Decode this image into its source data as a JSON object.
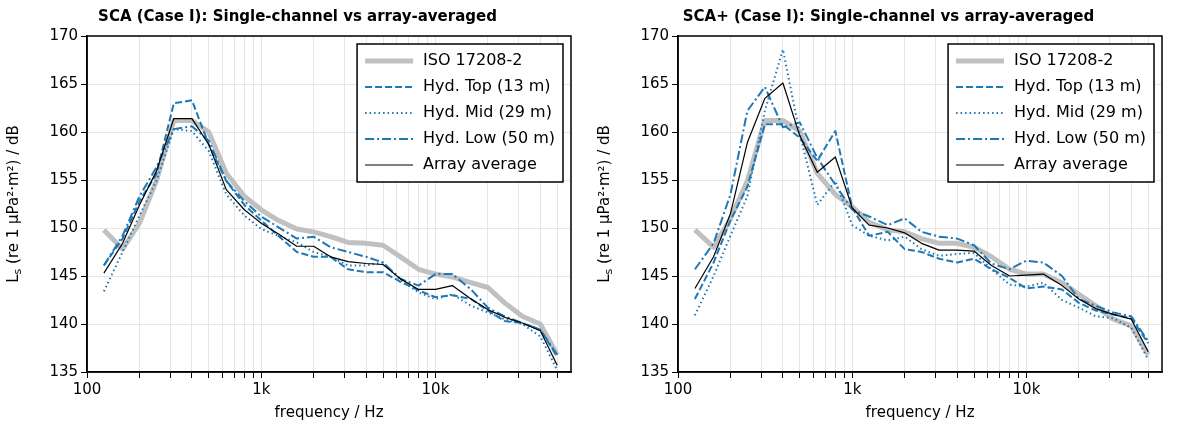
{
  "chart_data": [
    {
      "type": "line",
      "title": "SCA (Case I): Single-channel vs array-averaged",
      "xlabel": "frequency / Hz",
      "ylabel": "L$_{s}$ (re 1 μPa²·m²) / dB",
      "log": "x",
      "grid": true,
      "legend": "top right",
      "marker": "none",
      "x": [
        125,
        160,
        200,
        250,
        315,
        400,
        500,
        630,
        800,
        1000,
        1250,
        1600,
        2000,
        2500,
        3150,
        4000,
        5000,
        6300,
        8000,
        10000,
        12500,
        16000,
        20000,
        25000,
        31500,
        40000,
        50000
      ],
      "xlim": [
        100,
        60000
      ],
      "ylim": [
        135,
        170
      ],
      "yticks": [
        135,
        140,
        145,
        150,
        155,
        160,
        165,
        170
      ],
      "xticks": [
        {
          "value": 100,
          "label": "100"
        },
        {
          "value": 200,
          "label": null
        },
        {
          "value": 300,
          "label": null
        },
        {
          "value": 400,
          "label": null
        },
        {
          "value": 500,
          "label": null
        },
        {
          "value": 600,
          "label": null
        },
        {
          "value": 700,
          "label": null
        },
        {
          "value": 800,
          "label": null
        },
        {
          "value": 900,
          "label": null
        },
        {
          "value": 1000,
          "label": "1k"
        },
        {
          "value": 2000,
          "label": null
        },
        {
          "value": 3000,
          "label": null
        },
        {
          "value": 4000,
          "label": null
        },
        {
          "value": 5000,
          "label": null
        },
        {
          "value": 6000,
          "label": null
        },
        {
          "value": 7000,
          "label": null
        },
        {
          "value": 8000,
          "label": null
        },
        {
          "value": 9000,
          "label": null
        },
        {
          "value": 10000,
          "label": "10k"
        },
        {
          "value": 20000,
          "label": null
        },
        {
          "value": 30000,
          "label": null
        },
        {
          "value": 40000,
          "label": null
        },
        {
          "value": 50000,
          "label": null
        }
      ],
      "series": [
        {
          "name": "ISO 17208-2",
          "color": "#c0c0c0",
          "line_style": "solid",
          "values": [
            149.8,
            147.8,
            150.5,
            154.9,
            161.2,
            161.2,
            160.0,
            155.7,
            153.3,
            151.9,
            150.8,
            149.9,
            149.6,
            149.1,
            148.5,
            148.4,
            148.2,
            147.0,
            145.7,
            145.2,
            144.9,
            144.3,
            143.8,
            142.2,
            140.8,
            140.0,
            136.8
          ]
        },
        {
          "name": "Hyd. Top (13 m)",
          "color": "#1f77b4",
          "line_style": "dashed",
          "values": [
            146.1,
            148.9,
            152.8,
            155.6,
            163.0,
            163.3,
            158.7,
            154.9,
            152.4,
            150.8,
            149.2,
            147.5,
            147.0,
            147.0,
            145.7,
            145.4,
            145.4,
            144.4,
            143.5,
            142.8,
            143.0,
            142.6,
            141.4,
            140.3,
            140.1,
            139.4,
            136.6
          ]
        },
        {
          "name": "Hyd. Mid (29 m)",
          "color": "#1f77b4",
          "line_style": "dotted",
          "values": [
            143.4,
            147.5,
            151.3,
            154.9,
            160.3,
            160.1,
            158.0,
            153.5,
            151.3,
            149.9,
            149.2,
            148.5,
            147.5,
            147.0,
            146.1,
            146.1,
            146.4,
            144.6,
            143.3,
            142.6,
            143.1,
            141.9,
            141.2,
            140.5,
            140.0,
            138.7,
            135.2
          ]
        },
        {
          "name": "Hyd. Low (50 m)",
          "color": "#1f77b4",
          "line_style": "dashdot",
          "values": [
            146.1,
            149.2,
            153.3,
            156.3,
            160.3,
            160.6,
            159.1,
            154.9,
            152.8,
            151.2,
            150.1,
            148.9,
            149.1,
            148.0,
            147.5,
            147.0,
            146.4,
            144.7,
            144.0,
            145.2,
            145.2,
            143.6,
            141.7,
            140.8,
            140.1,
            139.4,
            136.8
          ]
        },
        {
          "name": "Array average",
          "color": "#000000",
          "line_style": "solid",
          "values": [
            145.3,
            148.4,
            152.4,
            155.9,
            161.4,
            161.4,
            158.7,
            154.0,
            151.9,
            150.5,
            149.4,
            148.1,
            148.1,
            147.0,
            146.5,
            146.3,
            146.2,
            144.7,
            143.6,
            143.6,
            144.0,
            142.6,
            141.5,
            140.7,
            140.1,
            139.3,
            135.7
          ]
        }
      ]
    },
    {
      "type": "line",
      "title": "SCA+ (Case I): Single-channel vs array-averaged",
      "xlabel": "frequency / Hz",
      "ylabel": "L$_{s}$ (re 1 μPa²·m²) / dB",
      "log": "x",
      "grid": true,
      "legend": "top right",
      "marker": "none",
      "x": [
        125,
        160,
        200,
        250,
        315,
        400,
        500,
        630,
        800,
        1000,
        1250,
        1600,
        2000,
        2500,
        3150,
        4000,
        5000,
        6300,
        8000,
        10000,
        12500,
        16000,
        20000,
        25000,
        31500,
        40000,
        50000
      ],
      "xlim": [
        100,
        60000
      ],
      "ylim": [
        135,
        170
      ],
      "yticks": [
        135,
        140,
        145,
        150,
        155,
        160,
        165,
        170
      ],
      "xticks": [
        {
          "value": 100,
          "label": "100"
        },
        {
          "value": 200,
          "label": null
        },
        {
          "value": 300,
          "label": null
        },
        {
          "value": 400,
          "label": null
        },
        {
          "value": 500,
          "label": null
        },
        {
          "value": 600,
          "label": null
        },
        {
          "value": 700,
          "label": null
        },
        {
          "value": 800,
          "label": null
        },
        {
          "value": 900,
          "label": null
        },
        {
          "value": 1000,
          "label": "1k"
        },
        {
          "value": 2000,
          "label": null
        },
        {
          "value": 3000,
          "label": null
        },
        {
          "value": 4000,
          "label": null
        },
        {
          "value": 5000,
          "label": null
        },
        {
          "value": 6000,
          "label": null
        },
        {
          "value": 7000,
          "label": null
        },
        {
          "value": 8000,
          "label": null
        },
        {
          "value": 9000,
          "label": null
        },
        {
          "value": 10000,
          "label": "10k"
        },
        {
          "value": 20000,
          "label": null
        },
        {
          "value": 30000,
          "label": null
        },
        {
          "value": 40000,
          "label": null
        },
        {
          "value": 50000,
          "label": null
        }
      ],
      "series": [
        {
          "name": "ISO 17208-2",
          "color": "#c0c0c0",
          "line_style": "solid",
          "values": [
            149.8,
            148.0,
            151.0,
            154.9,
            161.2,
            161.2,
            160.1,
            155.7,
            153.5,
            152.2,
            150.6,
            149.8,
            149.6,
            148.9,
            148.4,
            148.4,
            148.0,
            147.0,
            145.7,
            145.2,
            145.2,
            144.3,
            143.1,
            141.9,
            140.5,
            139.8,
            136.8
          ]
        },
        {
          "name": "Hyd. Top (13 m)",
          "color": "#1f77b4",
          "line_style": "dashed",
          "values": [
            142.6,
            146.4,
            150.8,
            154.3,
            160.8,
            160.8,
            159.4,
            157.0,
            160.1,
            152.1,
            149.2,
            149.6,
            147.8,
            147.5,
            146.8,
            146.4,
            146.8,
            145.7,
            144.8,
            143.7,
            143.9,
            143.6,
            142.2,
            141.4,
            141.0,
            140.6,
            138.0
          ]
        },
        {
          "name": "Hyd. Mid (29 m)",
          "color": "#1f77b4",
          "line_style": "dotted",
          "values": [
            140.9,
            145.0,
            149.2,
            153.3,
            162.2,
            168.6,
            159.8,
            152.4,
            154.9,
            150.3,
            149.2,
            148.7,
            149.1,
            147.8,
            147.1,
            147.3,
            147.4,
            145.7,
            144.1,
            143.9,
            144.3,
            142.5,
            141.7,
            140.8,
            140.6,
            139.6,
            136.3
          ]
        },
        {
          "name": "Hyd. Low (50 m)",
          "color": "#1f77b4",
          "line_style": "dashdot",
          "values": [
            145.7,
            148.4,
            153.5,
            162.2,
            164.7,
            160.5,
            161.0,
            157.3,
            154.5,
            151.9,
            151.2,
            150.3,
            151.0,
            149.6,
            149.1,
            148.9,
            148.2,
            146.3,
            145.7,
            146.6,
            146.4,
            145.0,
            142.6,
            141.9,
            141.2,
            140.8,
            138.2
          ]
        },
        {
          "name": "Array average",
          "color": "#000000",
          "line_style": "solid",
          "values": [
            143.7,
            147.0,
            151.5,
            158.9,
            163.5,
            165.1,
            159.6,
            155.8,
            157.4,
            152.1,
            150.3,
            150.0,
            149.5,
            148.4,
            147.7,
            147.7,
            147.6,
            146.1,
            145.0,
            145.1,
            145.2,
            144.0,
            142.6,
            141.6,
            141.0,
            140.5,
            137.1
          ]
        }
      ]
    }
  ]
}
